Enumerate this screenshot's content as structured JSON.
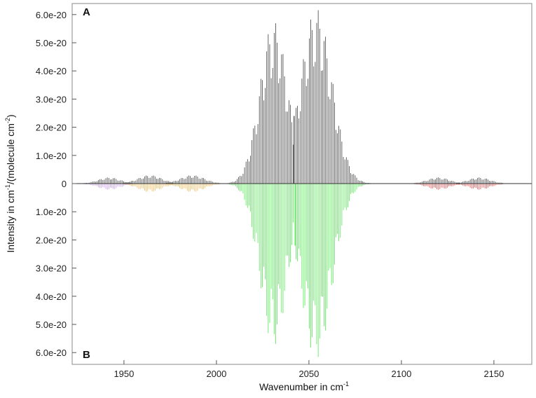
{
  "chart_data": {
    "type": "bar",
    "panels": [
      "A",
      "B"
    ],
    "xlabel": {
      "main": "Wavenumber in cm",
      "sup": "-1"
    },
    "ylabel": {
      "pre": "Intensity in cm",
      "sup1": "-1",
      "mid": "/(molecule cm",
      "sup2": "-2",
      "post": ")"
    },
    "xlim": [
      1922,
      2170
    ],
    "ylim": [
      -6.5e-20,
      6.5e-20
    ],
    "x_ticks": [
      1950,
      2000,
      2050,
      2100,
      2150
    ],
    "y_ticks": [
      {
        "value": 6e-20,
        "label": "6.0e-20"
      },
      {
        "value": 5e-20,
        "label": "5.0e-20"
      },
      {
        "value": 4e-20,
        "label": "4.0e-20"
      },
      {
        "value": 3e-20,
        "label": "3.0e-20"
      },
      {
        "value": 2e-20,
        "label": "2.0e-20"
      },
      {
        "value": 1e-20,
        "label": "1.0e-20"
      },
      {
        "value": 0,
        "label": "0"
      },
      {
        "value": -1e-20,
        "label": "1.0e-20"
      },
      {
        "value": -2e-20,
        "label": "2.0e-20"
      },
      {
        "value": -3e-20,
        "label": "3.0e-20"
      },
      {
        "value": -4e-20,
        "label": "4.0e-20"
      },
      {
        "value": -5e-20,
        "label": "5.0e-20"
      },
      {
        "value": -6e-20,
        "label": "6.0e-20"
      }
    ],
    "line_spacing": 0.8,
    "series": [
      {
        "panel": "A",
        "color": "#000000",
        "direction": 1,
        "center": 2031,
        "width": 7.5,
        "peak": 5.75e-20,
        "from": 2000,
        "to": 2042
      },
      {
        "panel": "A",
        "color": "#000000",
        "direction": 1,
        "center": 2054,
        "width": 8.5,
        "peak": 6.2e-20,
        "from": 2043,
        "to": 2090
      },
      {
        "panel": "A",
        "color": "#000000",
        "direction": 1,
        "center": 1942,
        "width": 6,
        "peak": 2.2e-21,
        "from": 1925,
        "to": 1955
      },
      {
        "panel": "A",
        "color": "#000000",
        "direction": 1,
        "center": 1964,
        "width": 6.5,
        "peak": 3e-21,
        "from": 1950,
        "to": 1977
      },
      {
        "panel": "A",
        "color": "#000000",
        "direction": 1,
        "center": 1987,
        "width": 6.5,
        "peak": 3e-21,
        "from": 1973,
        "to": 2002
      },
      {
        "panel": "A",
        "color": "#000000",
        "direction": 1,
        "center": 2120,
        "width": 6,
        "peak": 2.2e-21,
        "from": 2104,
        "to": 2132
      },
      {
        "panel": "A",
        "color": "#000000",
        "direction": 1,
        "center": 2142,
        "width": 6,
        "peak": 2.2e-21,
        "from": 2130,
        "to": 2165
      },
      {
        "panel": "B",
        "color": "#b87ee6",
        "direction": -1,
        "center": 1942,
        "width": 6,
        "peak": 2.2e-21,
        "from": 1925,
        "to": 1955
      },
      {
        "panel": "B",
        "color": "#f0a830",
        "direction": -1,
        "center": 1964,
        "width": 6.5,
        "peak": 3e-21,
        "from": 1950,
        "to": 1977
      },
      {
        "panel": "B",
        "color": "#f0a830",
        "direction": -1,
        "center": 1987,
        "width": 6.5,
        "peak": 3e-21,
        "from": 1973,
        "to": 2002
      },
      {
        "panel": "B",
        "color": "#22e622",
        "direction": -1,
        "center": 2031,
        "width": 7.5,
        "peak": 5.75e-20,
        "from": 2000,
        "to": 2042
      },
      {
        "panel": "B",
        "color": "#22e622",
        "direction": -1,
        "center": 2054,
        "width": 8.5,
        "peak": 6.2e-20,
        "from": 2043,
        "to": 2090
      },
      {
        "panel": "B",
        "color": "#e02020",
        "direction": -1,
        "center": 2120,
        "width": 6,
        "peak": 2.2e-21,
        "from": 2104,
        "to": 2132
      },
      {
        "panel": "B",
        "color": "#e02020",
        "direction": -1,
        "center": 2142,
        "width": 6,
        "peak": 2.2e-21,
        "from": 2130,
        "to": 2165
      }
    ],
    "spikes": [
      {
        "x": 2042,
        "value": 2.4e-20,
        "color": "#000000"
      },
      {
        "x": 2042.5,
        "value": -2.2e-20,
        "color": "#22e622"
      }
    ]
  }
}
